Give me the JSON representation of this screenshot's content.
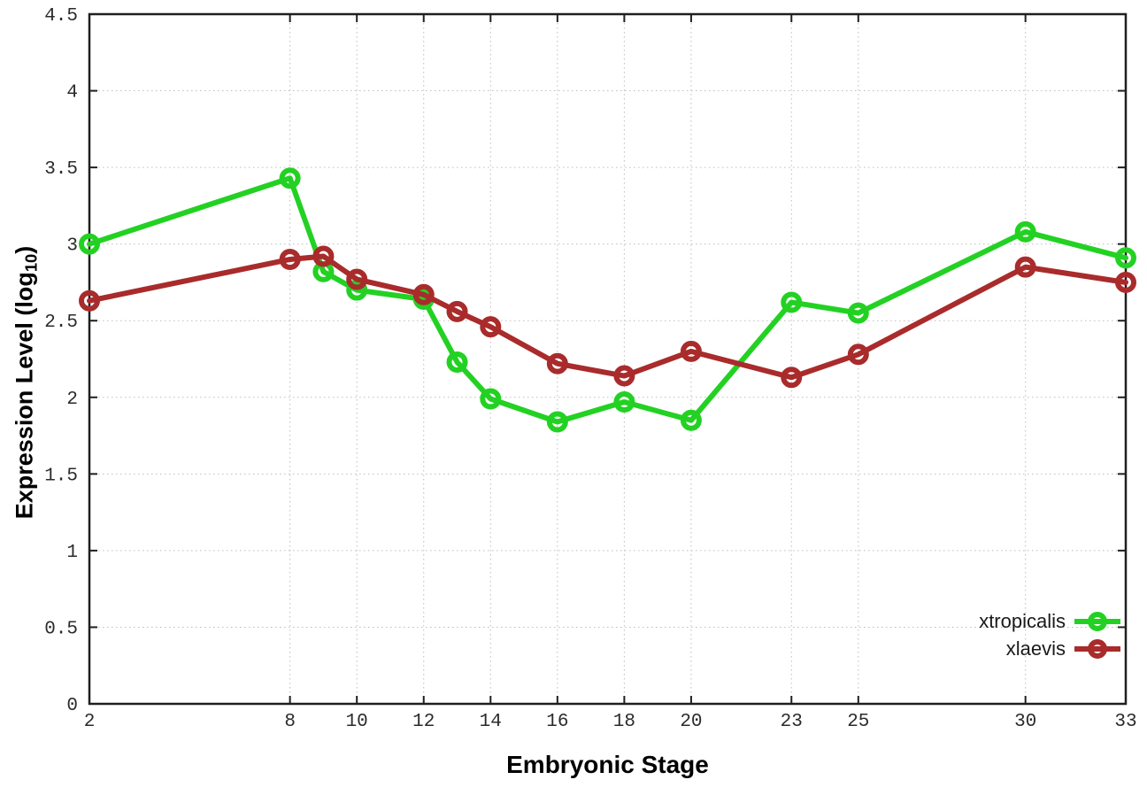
{
  "chart_data": {
    "type": "line",
    "title": "",
    "xlabel": "Embryonic Stage",
    "ylabel": "Expression Level (log10)",
    "ylabel_parts": {
      "main": "Expression Level (log",
      "sub": "10",
      "end": ")"
    },
    "xlim": [
      2,
      33
    ],
    "ylim": [
      0,
      4.5
    ],
    "xticks": [
      2,
      8,
      10,
      12,
      14,
      16,
      18,
      20,
      23,
      25,
      30,
      33
    ],
    "yticks": [
      0,
      0.5,
      1,
      1.5,
      2,
      2.5,
      3,
      3.5,
      4,
      4.5
    ],
    "grid": true,
    "legend_position": "inside-bottom-right",
    "x": [
      2,
      8,
      9,
      10,
      12,
      13,
      14,
      16,
      18,
      20,
      23,
      25,
      30,
      33
    ],
    "series": [
      {
        "name": "xtropicalis",
        "color": "#23d123",
        "marker": "open-circle",
        "values": [
          3.0,
          3.43,
          2.82,
          2.7,
          2.64,
          2.23,
          1.99,
          1.84,
          1.97,
          1.85,
          2.62,
          2.55,
          3.08,
          2.91
        ]
      },
      {
        "name": "xlaevis",
        "color": "#a92b2b",
        "marker": "open-circle",
        "values": [
          2.63,
          2.9,
          2.92,
          2.77,
          2.67,
          2.56,
          2.46,
          2.22,
          2.14,
          2.3,
          2.13,
          2.28,
          2.85,
          2.75
        ]
      }
    ],
    "colors": {
      "grid": "#bdbdbd",
      "axis": "#1f1f1f",
      "tick_text": "#2b2b2b",
      "label_text": "#000000",
      "background": "#ffffff"
    }
  }
}
